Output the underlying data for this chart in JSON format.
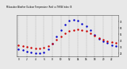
{
  "hours": [
    0,
    1,
    2,
    3,
    4,
    5,
    6,
    7,
    8,
    9,
    10,
    11,
    12,
    13,
    14,
    15,
    16,
    17,
    18,
    19,
    20,
    21,
    22,
    23
  ],
  "temp_red": [
    38,
    36,
    35,
    34,
    33,
    33,
    34,
    36,
    40,
    46,
    52,
    57,
    60,
    62,
    63,
    62,
    60,
    57,
    53,
    49,
    46,
    44,
    43,
    42
  ],
  "thsw_blue": [
    32,
    30,
    28,
    27,
    26,
    25,
    27,
    32,
    40,
    52,
    62,
    70,
    76,
    78,
    76,
    72,
    68,
    62,
    54,
    48,
    44,
    41,
    38,
    36
  ],
  "red_color": "#cc0000",
  "blue_color": "#0000cc",
  "bg_color": "#e8e8e8",
  "plot_bg": "#e8e8e8",
  "ylim_min": 20,
  "ylim_max": 85,
  "yticks": [
    25,
    35,
    45,
    55,
    65,
    75
  ],
  "xticks": [
    0,
    2,
    4,
    6,
    8,
    10,
    12,
    14,
    16,
    18,
    20,
    22
  ],
  "grid_color": "#888888",
  "title_text": "Milwaukee Weather Outdoor Temperature (Red) vs THSW Index (Blue) per Hour (24 Hours)",
  "right_spine_visible": true
}
